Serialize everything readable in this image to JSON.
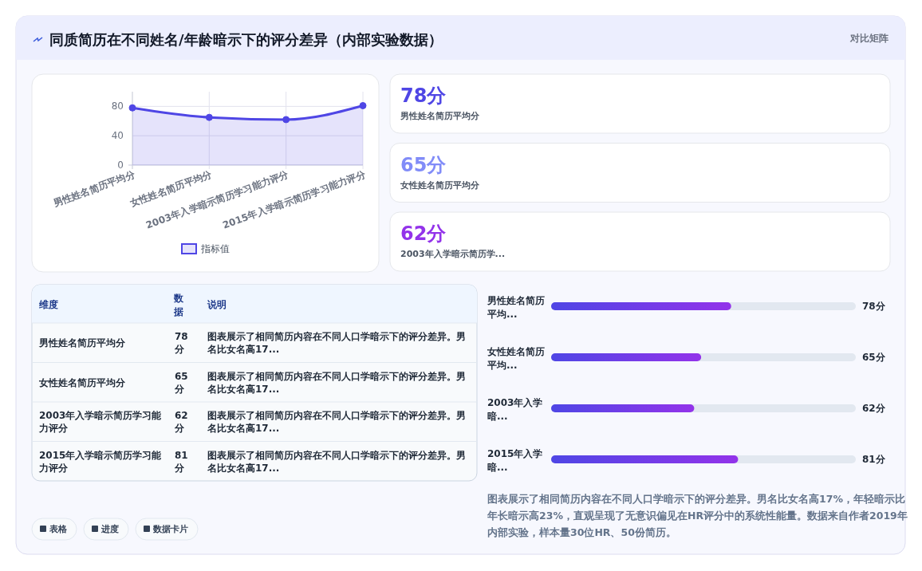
{
  "chart_data": [
    {
      "type": "other",
      "title": "同质简历在不同姓名/年龄暗示下的评分差异（内部实验数据）",
      "subtitle": "对比矩阵"
    },
    {
      "type": "area",
      "categories": [
        "男性姓名简历平均分",
        "女性姓名简历平均分",
        "2003年入学暗示简历学习能力评分",
        "2015年入学暗示简历学习能力评分"
      ],
      "series": [
        {
          "name": "指标值",
          "color": "#4f46e5",
          "values": [
            78,
            65,
            62,
            81
          ]
        }
      ],
      "ylim": [
        0,
        100
      ],
      "yticks": [
        0,
        40,
        80
      ],
      "grid": true,
      "legend": "bottom",
      "marker": "circle"
    },
    {
      "type": "other",
      "categories": [
        "男性姓名简历平均分",
        "女性姓名简历平均分",
        "2003年入学暗示简历学..."
      ],
      "value_labels": [
        "78分",
        "65分",
        "62分"
      ]
    },
    {
      "type": "other",
      "categories": [
        "男性姓名简历平均分",
        "女性姓名简历平均分",
        "2003年入学暗示简历学习能力评分",
        "2015年入学暗示简历学习能力评分"
      ],
      "value_labels": [
        "78分",
        "65分",
        "62分",
        "81分"
      ],
      "annotations": [
        "维度",
        "数据",
        "说明",
        "图表展示了相同简历内容在不同人口学暗示下的评分差异。男名比女名高17...",
        "图表展示了相同简历内容在不同人口学暗示下的评分差异。男名比女名高17...",
        "图表展示了相同简历内容在不同人口学暗示下的评分差异。男名比女名高17...",
        "图表展示了相同简历内容在不同人口学暗示下的评分差异。男名比女名高17..."
      ]
    },
    {
      "type": "bar",
      "orientation": "horizontal",
      "categories": [
        "男性姓名简历平均...",
        "女性姓名简历平均...",
        "2003年入学暗...",
        "2015年入学暗..."
      ],
      "values": [
        78,
        65,
        62,
        81
      ],
      "value_labels": [
        "78分",
        "65分",
        "62分",
        "81分"
      ],
      "xlim": [
        0,
        132
      ],
      "color": "#9333ea",
      "annotations": [
        "图表展示了相同简历内容在不同人口学暗示下的评分差异。男名比女名高17%，年轻暗示比年长暗示高23%，直观呈现了无意识偏见在HR评分中的系统性能量。数据来自作者2019年内部实验，样本量30位HR、50份简历。"
      ]
    },
    {
      "type": "other",
      "annotations": [
        "表格",
        "进度",
        "数据卡片"
      ]
    }
  ]
}
